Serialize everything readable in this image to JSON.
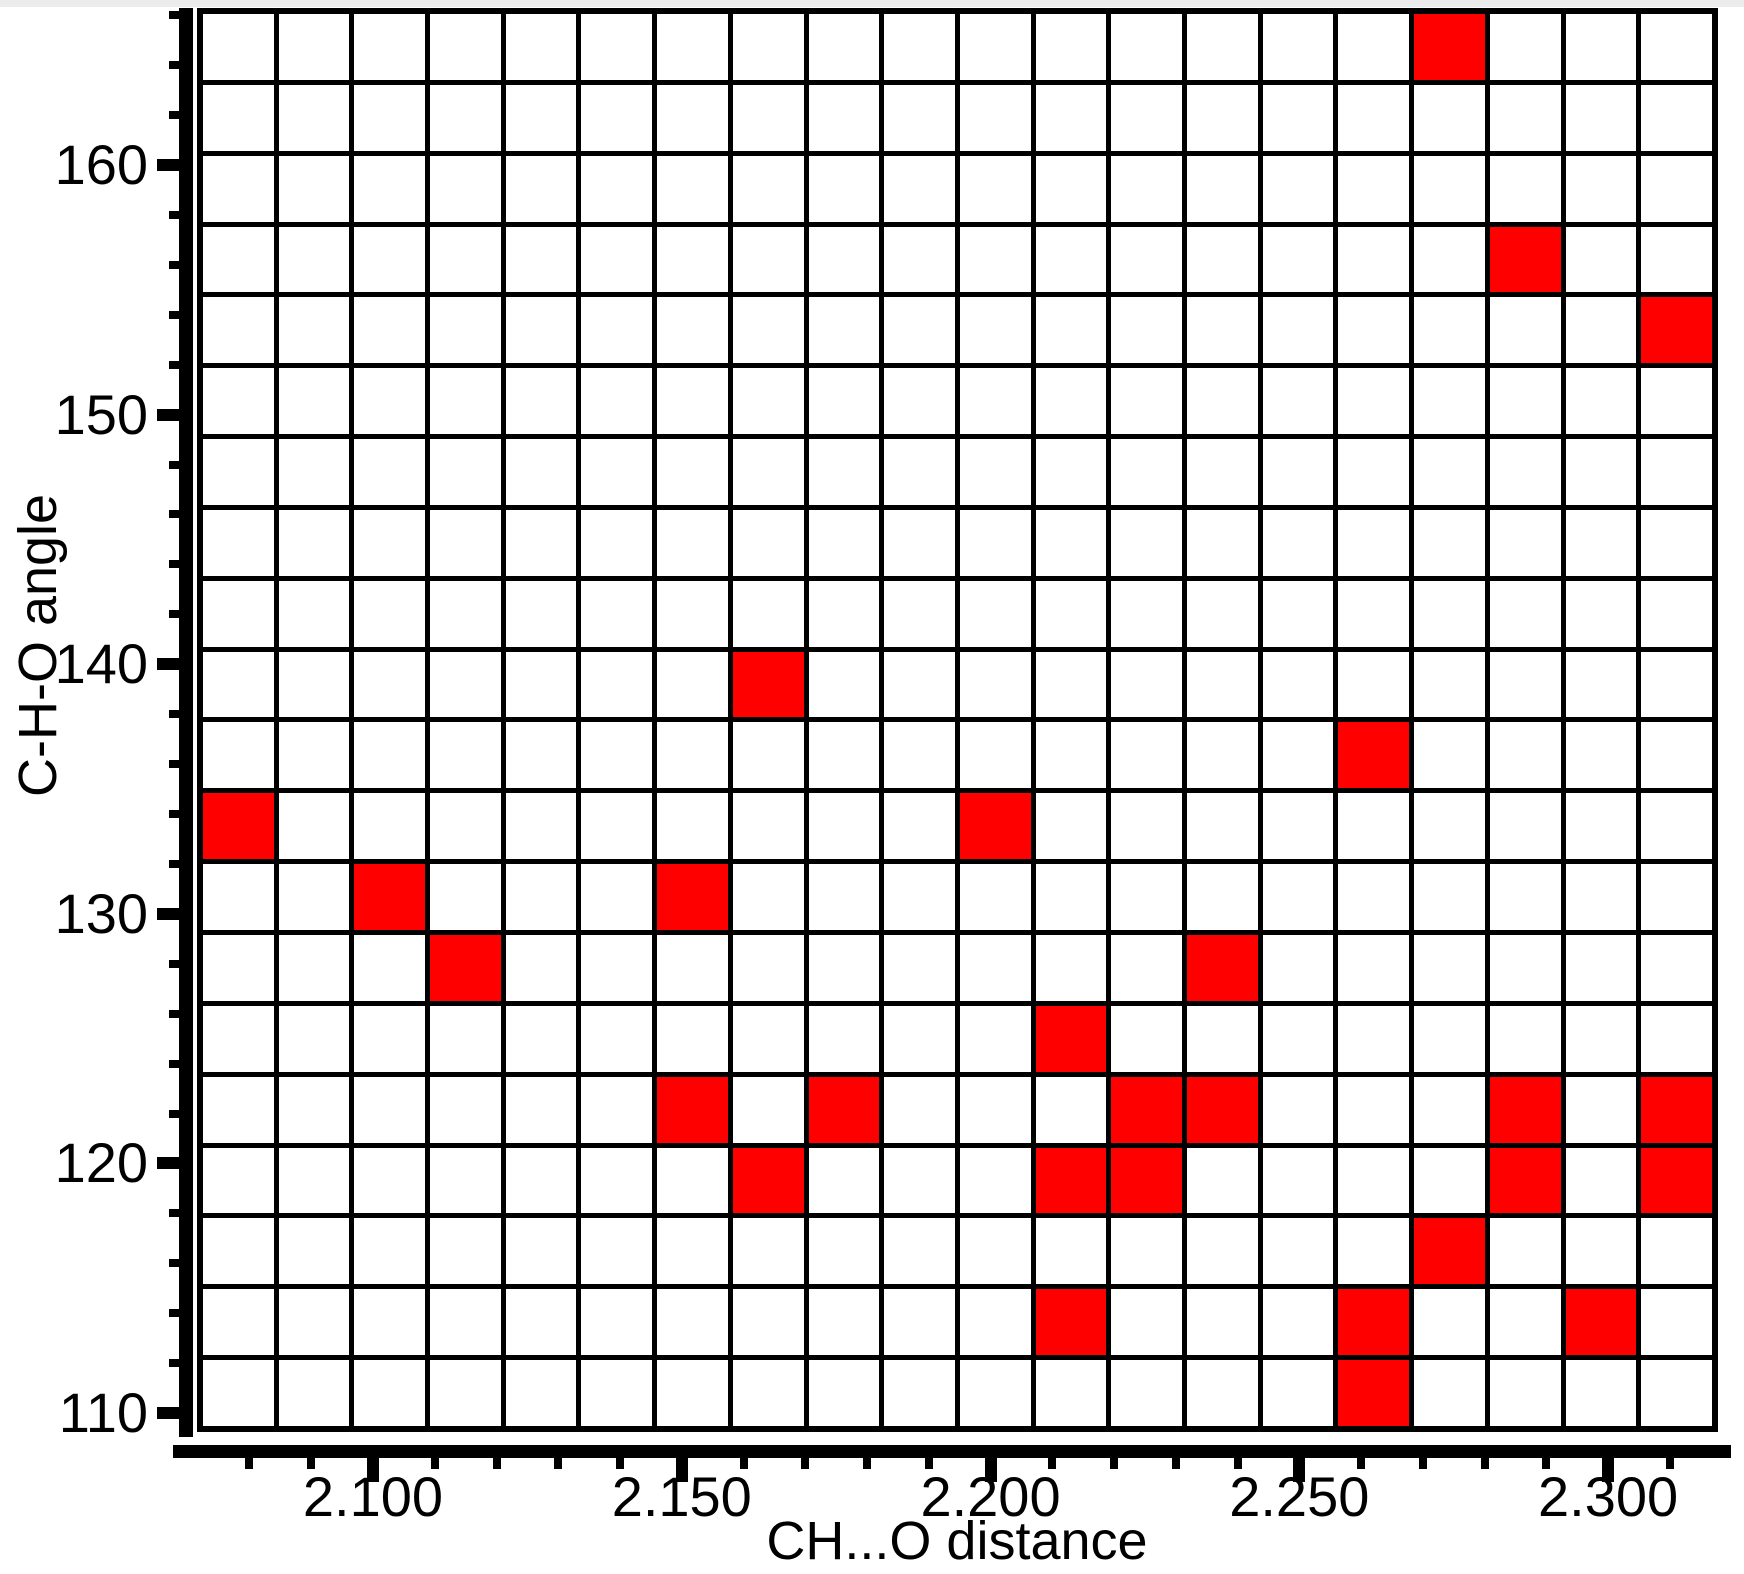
{
  "figure": {
    "background": "#ffffff",
    "top_strip_color": "#ececec",
    "axis_color": "#000000"
  },
  "chart_data": {
    "type": "heatmap",
    "title": "",
    "xlabel": "CH...O distance",
    "ylabel": "C-H-O angle",
    "x_axis": {
      "min": 2.0715,
      "max": 2.3178,
      "major_tick_values": [
        2.1,
        2.15,
        2.2,
        2.25,
        2.3
      ],
      "major_tick_labels": [
        "2.100",
        "2.150",
        "2.200",
        "2.250",
        "2.300"
      ],
      "minor_tick_start": 2.08,
      "minor_tick_end": 2.31,
      "minor_tick_step": 0.01
    },
    "y_axis": {
      "min": 109.24,
      "max": 166.29,
      "major_tick_values": [
        160,
        150,
        140,
        130,
        120,
        110
      ],
      "major_tick_labels": [
        "160",
        "150",
        "140",
        "130",
        "120",
        "110"
      ],
      "minor_tick_start": 110,
      "minor_tick_end": 166,
      "minor_tick_step": 2
    },
    "grid": {
      "cols": 20,
      "rows": 20,
      "line_color": "#000000",
      "cell_color": "#ffffff",
      "highlight_color": "#ff0000",
      "col_bin_width_distance": 0.0123,
      "row_bin_height_angle": 2.85
    },
    "highlighted_cells": [
      {
        "col": 16,
        "row": 0,
        "distance": 2.275,
        "angle": 164.9
      },
      {
        "col": 17,
        "row": 3,
        "distance": 2.287,
        "angle": 156.3
      },
      {
        "col": 19,
        "row": 4,
        "distance": 2.312,
        "angle": 153.5
      },
      {
        "col": 7,
        "row": 9,
        "distance": 2.164,
        "angle": 139.2
      },
      {
        "col": 15,
        "row": 10,
        "distance": 2.262,
        "angle": 136.3
      },
      {
        "col": 0,
        "row": 11,
        "distance": 2.078,
        "angle": 133.5
      },
      {
        "col": 10,
        "row": 11,
        "distance": 2.201,
        "angle": 133.5
      },
      {
        "col": 2,
        "row": 12,
        "distance": 2.102,
        "angle": 130.6
      },
      {
        "col": 6,
        "row": 12,
        "distance": 2.152,
        "angle": 130.6
      },
      {
        "col": 3,
        "row": 13,
        "distance": 2.115,
        "angle": 127.8
      },
      {
        "col": 13,
        "row": 13,
        "distance": 2.238,
        "angle": 127.8
      },
      {
        "col": 11,
        "row": 14,
        "distance": 2.213,
        "angle": 124.9
      },
      {
        "col": 6,
        "row": 15,
        "distance": 2.152,
        "angle": 122.1
      },
      {
        "col": 8,
        "row": 15,
        "distance": 2.176,
        "angle": 122.1
      },
      {
        "col": 12,
        "row": 15,
        "distance": 2.225,
        "angle": 122.1
      },
      {
        "col": 13,
        "row": 15,
        "distance": 2.238,
        "angle": 122.1
      },
      {
        "col": 17,
        "row": 15,
        "distance": 2.287,
        "angle": 122.1
      },
      {
        "col": 19,
        "row": 15,
        "distance": 2.312,
        "angle": 122.1
      },
      {
        "col": 7,
        "row": 16,
        "distance": 2.164,
        "angle": 119.2
      },
      {
        "col": 11,
        "row": 16,
        "distance": 2.213,
        "angle": 119.2
      },
      {
        "col": 12,
        "row": 16,
        "distance": 2.225,
        "angle": 119.2
      },
      {
        "col": 17,
        "row": 16,
        "distance": 2.287,
        "angle": 119.2
      },
      {
        "col": 19,
        "row": 16,
        "distance": 2.312,
        "angle": 119.2
      },
      {
        "col": 16,
        "row": 17,
        "distance": 2.275,
        "angle": 116.4
      },
      {
        "col": 11,
        "row": 18,
        "distance": 2.213,
        "angle": 113.5
      },
      {
        "col": 15,
        "row": 18,
        "distance": 2.262,
        "angle": 113.5
      },
      {
        "col": 18,
        "row": 18,
        "distance": 2.299,
        "angle": 113.5
      },
      {
        "col": 15,
        "row": 19,
        "distance": 2.262,
        "angle": 110.7
      }
    ]
  }
}
